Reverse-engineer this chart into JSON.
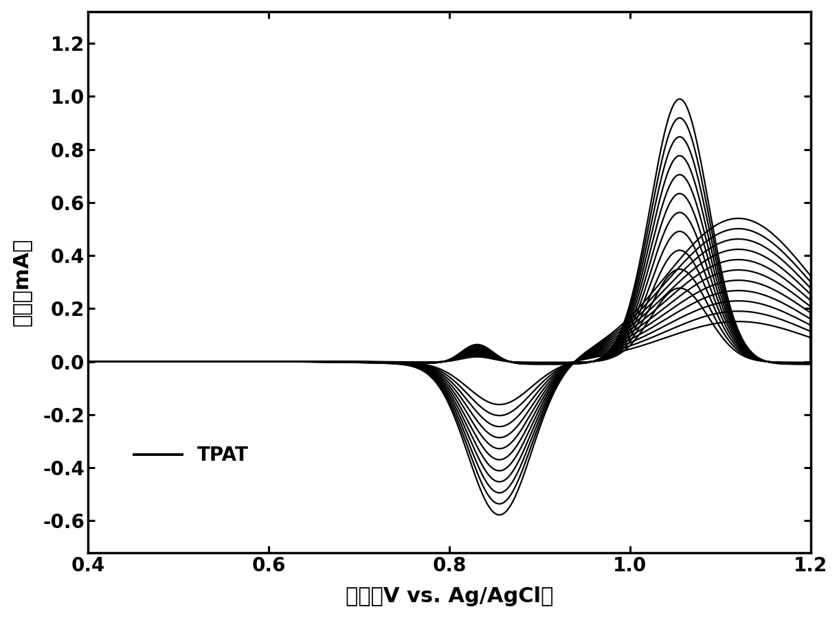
{
  "xlabel": "电压（V vs. Ag/AgCl）",
  "ylabel": "电流（mA）",
  "legend_label": "TPAT",
  "xlim": [
    0.4,
    1.2
  ],
  "ylim": [
    -0.72,
    1.32
  ],
  "xticks": [
    0.4,
    0.6,
    0.8,
    1.0,
    1.2
  ],
  "yticks": [
    -0.6,
    -0.4,
    -0.2,
    0.0,
    0.2,
    0.4,
    0.6,
    0.8,
    1.0,
    1.2
  ],
  "n_cycles": 11,
  "background_color": "#ffffff",
  "line_color": "#000000",
  "linewidth": 1.6,
  "xlabel_fontsize": 22,
  "ylabel_fontsize": 22,
  "tick_fontsize": 20,
  "legend_fontsize": 20
}
